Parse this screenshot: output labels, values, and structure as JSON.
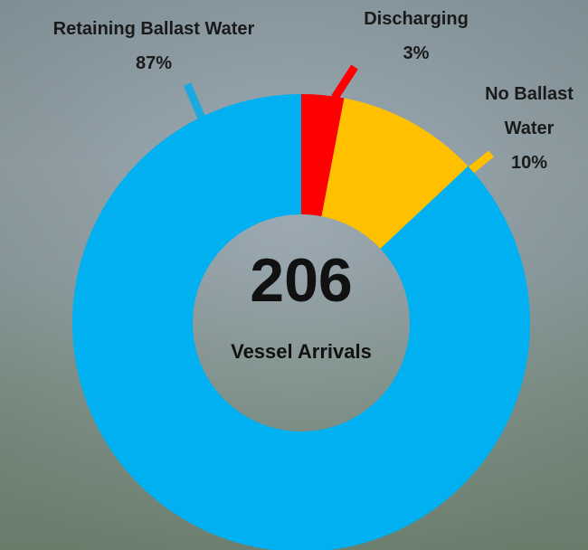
{
  "chart_data": {
    "type": "donut",
    "categories": [
      "Discharging",
      "No Ballast Water",
      "Retaining Ballast Water"
    ],
    "values": [
      3,
      10,
      87
    ],
    "value_labels": [
      "3%",
      "10%",
      "87%"
    ],
    "colors": [
      "#ff0000",
      "#ffc000",
      "#00b0f0"
    ],
    "center_value": 206,
    "center_label": "Vessel Arrivals"
  }
}
